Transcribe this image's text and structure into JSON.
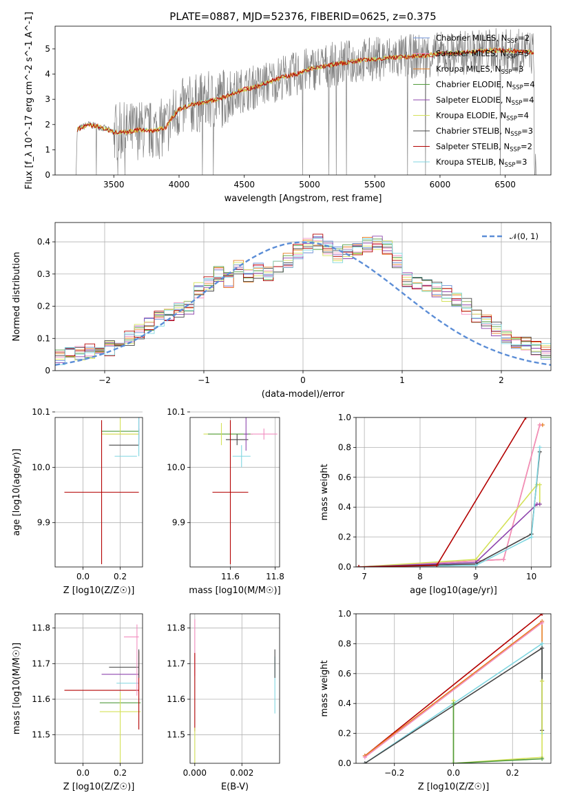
{
  "figure_title": "PLATE=0887, MJD=52376, FIBERID=0625, z=0.375",
  "colors": {
    "chabrier_miles": "#6b8fd6",
    "salpeter_miles": "#f28cbf",
    "kroupa_miles": "#e67e22",
    "chabrier_elodie": "#4f9a3b",
    "salpeter_elodie": "#8e44ad",
    "kroupa_elodie": "#d4e157",
    "chabrier_stelib": "#444444",
    "salpeter_stelib": "#b30000",
    "kroupa_stelib": "#7fd6e0",
    "data": "#808080",
    "normal": "#5b8dd6"
  },
  "chart_data": [
    {
      "id": "spectrum",
      "type": "line",
      "xlabel": "wavelength [Angstrom, rest frame]",
      "ylabel": "Flux [f_λ 10^-17 erg cm^-2 s^-1 A^-1]",
      "xlim": [
        3050,
        6850
      ],
      "ylim": [
        0,
        5.9
      ],
      "xticks": [
        3500,
        4000,
        4500,
        5000,
        5500,
        6000,
        6500
      ],
      "yticks": [
        0,
        1,
        2,
        3,
        4,
        5
      ],
      "grid": false,
      "legend_position": "upper right",
      "legend": [
        {
          "label": "Chabrier MILES, N",
          "sub": "SSP",
          "tail": "=2",
          "color_key": "chabrier_miles"
        },
        {
          "label": "Salpeter MILES, N",
          "sub": "SSP",
          "tail": "=3",
          "color_key": "salpeter_miles"
        },
        {
          "label": "Kroupa MILES, N",
          "sub": "SSP",
          "tail": "=3",
          "color_key": "kroupa_miles"
        },
        {
          "label": "Chabrier ELODIE, N",
          "sub": "SSP",
          "tail": "=4",
          "color_key": "chabrier_elodie"
        },
        {
          "label": "Salpeter ELODIE, N",
          "sub": "SSP",
          "tail": "=4",
          "color_key": "salpeter_elodie"
        },
        {
          "label": "Kroupa ELODIE, N",
          "sub": "SSP",
          "tail": "=4",
          "color_key": "kroupa_elodie"
        },
        {
          "label": "Chabrier STELIB, N",
          "sub": "SSP",
          "tail": "=3",
          "color_key": "chabrier_stelib"
        },
        {
          "label": "Salpeter STELIB, N",
          "sub": "SSP",
          "tail": "=2",
          "color_key": "salpeter_stelib"
        },
        {
          "label": "Kroupa STELIB, N",
          "sub": "SSP",
          "tail": "=3",
          "color_key": "kroupa_stelib"
        }
      ],
      "model_trend": [
        [
          3210,
          0
        ],
        [
          3220,
          1.8
        ],
        [
          3300,
          2.0
        ],
        [
          3400,
          1.9
        ],
        [
          3500,
          1.7
        ],
        [
          3600,
          1.7
        ],
        [
          3700,
          1.8
        ],
        [
          3800,
          1.75
        ],
        [
          3900,
          1.9
        ],
        [
          3950,
          2.3
        ],
        [
          4000,
          2.6
        ],
        [
          4100,
          2.8
        ],
        [
          4200,
          2.9
        ],
        [
          4300,
          3.0
        ],
        [
          4400,
          3.2
        ],
        [
          4500,
          3.4
        ],
        [
          4600,
          3.5
        ],
        [
          4700,
          3.7
        ],
        [
          4800,
          3.9
        ],
        [
          4900,
          4.0
        ],
        [
          5000,
          4.2
        ],
        [
          5200,
          4.4
        ],
        [
          5400,
          4.55
        ],
        [
          5600,
          4.65
        ],
        [
          5800,
          4.7
        ],
        [
          6000,
          4.8
        ],
        [
          6200,
          4.85
        ],
        [
          6400,
          4.95
        ],
        [
          6600,
          4.9
        ],
        [
          6720,
          4.85
        ]
      ],
      "data_xrange": [
        3210,
        6740
      ]
    },
    {
      "id": "residuals",
      "type": "bar",
      "xlabel": "(data-model)/error",
      "ylabel": "Normed distribution",
      "xlim": [
        -2.5,
        2.5
      ],
      "ylim": [
        0,
        0.46
      ],
      "xticks": [
        -2,
        -1,
        0,
        1,
        2
      ],
      "xtick_labels": [
        "−2",
        "−1",
        "0",
        "1",
        "2"
      ],
      "yticks": [
        0,
        0.1,
        0.2,
        0.3,
        0.4
      ],
      "grid": true,
      "legend": "𝒩(0, 1)",
      "bin_width": 0.1,
      "hist_base": [
        0.02,
        0.025,
        0.03,
        0.04,
        0.05,
        0.055,
        0.06,
        0.05,
        0.07,
        0.09,
        0.1,
        0.12,
        0.14,
        0.16,
        0.18,
        0.19,
        0.2,
        0.25,
        0.27,
        0.3,
        0.28,
        0.32,
        0.3,
        0.31,
        0.3,
        0.32,
        0.34,
        0.37,
        0.39,
        0.4,
        0.38,
        0.36,
        0.37,
        0.38,
        0.39,
        0.4,
        0.38,
        0.34,
        0.28,
        0.27,
        0.26,
        0.25,
        0.24,
        0.22,
        0.2,
        0.17,
        0.15,
        0.13,
        0.1,
        0.09,
        0.08,
        0.07,
        0.06,
        0.05,
        0.04,
        0.03
      ]
    },
    {
      "id": "age_vs_Z",
      "type": "scatter",
      "xlabel": "Z [log10(Z/Z☉)]",
      "ylabel": "age  [log10(age/yr)]",
      "xlim": [
        -0.15,
        0.32
      ],
      "ylim": [
        9.82,
        10.09
      ],
      "xticks": [
        0.0,
        0.2
      ],
      "xtick_labels": [
        "0.0",
        "0.2"
      ],
      "yticks": [
        9.9,
        10.0,
        10.1
      ],
      "ytick_labels": [
        "9.9",
        "10.0",
        "10.1"
      ],
      "grid": true,
      "points": [
        {
          "x": 0.21,
          "y": 10.06,
          "xerr": 0.09,
          "yerr": 0.0,
          "c": "kroupa_miles"
        },
        {
          "x": 0.2,
          "y": 10.065,
          "xerr": 0.1,
          "yerr": 0.0,
          "c": "chabrier_elodie"
        },
        {
          "x": 0.2,
          "y": 10.06,
          "xerr": 0.1,
          "yerr": 0.0,
          "c": "kroupa_elodie"
        },
        {
          "x": 0.22,
          "y": 10.04,
          "xerr": 0.08,
          "yerr": 0.0,
          "c": "chabrier_stelib"
        },
        {
          "x": 0.23,
          "y": 10.02,
          "xerr": 0.06,
          "yerr": 0.0,
          "c": "kroupa_stelib"
        },
        {
          "x": 0.3,
          "y": 10.06,
          "xerr": 0.0,
          "yerr": 0.01,
          "c": "chabrier_miles"
        },
        {
          "x": 0.3,
          "y": 10.07,
          "xerr": 0.0,
          "yerr": 0.03,
          "c": "salpeter_elodie"
        },
        {
          "x": 0.1,
          "y": 9.955,
          "xerr": 0.2,
          "yerr": 0.13,
          "c": "salpeter_stelib"
        },
        {
          "x": 0.2,
          "y": 10.09,
          "xerr": 0.0,
          "yerr": 0.03,
          "c": "kroupa_elodie"
        },
        {
          "x": 0.3,
          "y": 10.06,
          "xerr": 0.0,
          "yerr": 0.04,
          "c": "kroupa_stelib"
        }
      ]
    },
    {
      "id": "age_vs_mass",
      "type": "scatter",
      "xlabel": "mass [log10(M/M☉)]",
      "ylabel": "",
      "xlim": [
        11.42,
        11.82
      ],
      "ylim": [
        9.82,
        10.09
      ],
      "xticks": [
        11.6,
        11.8
      ],
      "xtick_labels": [
        "11.6",
        "11.8"
      ],
      "yticks": [
        9.9,
        10.0,
        10.1
      ],
      "ytick_labels": [
        "9.9",
        "10.0",
        "10.1"
      ],
      "grid": true,
      "points": [
        {
          "x": 11.58,
          "y": 10.06,
          "xerr": 0.1,
          "yerr": 0.0,
          "c": "kroupa_elodie"
        },
        {
          "x": 11.6,
          "y": 10.06,
          "xerr": 0.1,
          "yerr": 0.0,
          "c": "chabrier_elodie"
        },
        {
          "x": 11.63,
          "y": 10.05,
          "xerr": 0.05,
          "yerr": 0.01,
          "c": "chabrier_stelib"
        },
        {
          "x": 11.65,
          "y": 10.02,
          "xerr": 0.04,
          "yerr": 0.02,
          "c": "kroupa_stelib"
        },
        {
          "x": 11.67,
          "y": 10.06,
          "xerr": 0.01,
          "yerr": 0.03,
          "c": "salpeter_elodie"
        },
        {
          "x": 11.75,
          "y": 10.06,
          "xerr": 0.06,
          "yerr": 0.01,
          "c": "salpeter_miles"
        },
        {
          "x": 11.6,
          "y": 9.955,
          "xerr": 0.08,
          "yerr": 0.13,
          "c": "salpeter_stelib"
        },
        {
          "x": 11.56,
          "y": 10.06,
          "xerr": 0.0,
          "yerr": 0.02,
          "c": "kroupa_elodie"
        }
      ]
    },
    {
      "id": "mass_weight_vs_age",
      "type": "line",
      "xlabel": "age  [log10(age/yr)]",
      "ylabel": "mass weight",
      "xlim": [
        6.85,
        10.35
      ],
      "ylim": [
        0,
        1.0
      ],
      "xticks": [
        7,
        8,
        9,
        10
      ],
      "xtick_labels": [
        "7",
        "8",
        "9",
        "10"
      ],
      "yticks": [
        0,
        0.2,
        0.4,
        0.6,
        0.8,
        1.0
      ],
      "ytick_labels": [
        "0.0",
        "0.2",
        "0.4",
        "0.6",
        "0.8",
        "1.0"
      ],
      "grid": true,
      "series": [
        {
          "c": "kroupa_miles",
          "pts": [
            [
              6.9,
              0
            ],
            [
              9.5,
              0.05
            ],
            [
              10.15,
              0.95
            ],
            [
              10.2,
              0.95
            ]
          ]
        },
        {
          "c": "salpeter_miles",
          "pts": [
            [
              6.9,
              0
            ],
            [
              9.5,
              0.05
            ],
            [
              10.15,
              0.95
            ]
          ]
        },
        {
          "c": "kroupa_elodie",
          "pts": [
            [
              6.9,
              0
            ],
            [
              9.0,
              0.05
            ],
            [
              10.1,
              0.55
            ],
            [
              10.15,
              0.55
            ],
            [
              10.15,
              0.42
            ]
          ]
        },
        {
          "c": "salpeter_elodie",
          "pts": [
            [
              6.9,
              0
            ],
            [
              9.0,
              0.03
            ],
            [
              10.1,
              0.42
            ],
            [
              10.15,
              0.42
            ]
          ]
        },
        {
          "c": "chabrier_stelib",
          "pts": [
            [
              6.9,
              0
            ],
            [
              9.0,
              0.02
            ],
            [
              10.0,
              0.22
            ],
            [
              10.15,
              0.77
            ]
          ]
        },
        {
          "c": "kroupa_stelib",
          "pts": [
            [
              6.9,
              0
            ],
            [
              9.0,
              0.01
            ],
            [
              10.0,
              0.2
            ],
            [
              10.15,
              0.8
            ]
          ]
        },
        {
          "c": "salpeter_stelib",
          "pts": [
            [
              6.9,
              0
            ],
            [
              8.3,
              0.01
            ],
            [
              9.9,
              1.0
            ]
          ]
        }
      ]
    },
    {
      "id": "mass_vs_Z",
      "type": "scatter",
      "xlabel": "Z [log10(Z/Z☉)]",
      "ylabel": "mass [log10(M/M☉)]",
      "xlim": [
        -0.15,
        0.32
      ],
      "ylim": [
        11.42,
        11.84
      ],
      "xticks": [
        0.0,
        0.2
      ],
      "xtick_labels": [
        "0.0",
        "0.2"
      ],
      "yticks": [
        11.5,
        11.6,
        11.7,
        11.8
      ],
      "ytick_labels": [
        "11.5",
        "11.6",
        "11.7",
        "11.8"
      ],
      "grid": true,
      "points": [
        {
          "x": 0.2,
          "y": 11.565,
          "xerr": 0.11,
          "yerr": 0.0,
          "c": "kroupa_elodie"
        },
        {
          "x": 0.2,
          "y": 11.59,
          "xerr": 0.11,
          "yerr": 0.0,
          "c": "chabrier_elodie"
        },
        {
          "x": 0.2,
          "y": 11.67,
          "xerr": 0.1,
          "yerr": 0.0,
          "c": "salpeter_elodie"
        },
        {
          "x": 0.22,
          "y": 11.69,
          "xerr": 0.08,
          "yerr": 0.0,
          "c": "chabrier_stelib"
        },
        {
          "x": 0.24,
          "y": 11.645,
          "xerr": 0.06,
          "yerr": 0.0,
          "c": "kroupa_stelib"
        },
        {
          "x": 0.26,
          "y": 11.775,
          "xerr": 0.04,
          "yerr": 0.0,
          "c": "salpeter_miles"
        },
        {
          "x": 0.1,
          "y": 11.625,
          "xerr": 0.2,
          "yerr": 0.0,
          "c": "salpeter_stelib"
        },
        {
          "x": 0.3,
          "y": 11.625,
          "xerr": 0.0,
          "yerr": 0.11,
          "c": "salpeter_stelib"
        },
        {
          "x": 0.2,
          "y": 11.52,
          "xerr": 0.0,
          "yerr": 0.1,
          "c": "kroupa_elodie"
        },
        {
          "x": 0.29,
          "y": 11.71,
          "xerr": 0.0,
          "yerr": 0.1,
          "c": "salpeter_miles"
        },
        {
          "x": 0.3,
          "y": 11.7,
          "xerr": 0.0,
          "yerr": 0.04,
          "c": "chabrier_stelib"
        }
      ]
    },
    {
      "id": "mass_vs_ebv",
      "type": "scatter",
      "xlabel": "E(B-V)",
      "ylabel": "",
      "xlim": [
        -0.0002,
        0.0036
      ],
      "ylim": [
        11.42,
        11.84
      ],
      "xticks": [
        0.0,
        0.002
      ],
      "xtick_labels": [
        "0.000",
        "0.002"
      ],
      "yticks": [
        11.5,
        11.6,
        11.7,
        11.8
      ],
      "ytick_labels": [
        "11.5",
        "11.6",
        "11.7",
        "11.8"
      ],
      "grid": true,
      "points": [
        {
          "x": 0.0,
          "y": 11.745,
          "xerr": 0.0,
          "yerr": 0.08,
          "c": "salpeter_miles"
        },
        {
          "x": 0.0,
          "y": 11.62,
          "xerr": 0.0,
          "yerr": 0.11,
          "c": "salpeter_stelib"
        },
        {
          "x": 0.0,
          "y": 11.47,
          "xerr": 0.0,
          "yerr": 0.05,
          "c": "kroupa_elodie"
        },
        {
          "x": 0.0034,
          "y": 11.64,
          "xerr": 0.0,
          "yerr": 0.08,
          "c": "kroupa_stelib"
        },
        {
          "x": 0.0034,
          "y": 11.7,
          "xerr": 0.0,
          "yerr": 0.04,
          "c": "chabrier_stelib"
        }
      ]
    },
    {
      "id": "mass_weight_vs_Z",
      "type": "line",
      "xlabel": "Z [log10(Z/Z☉)]",
      "ylabel": "mass weight",
      "xlim": [
        -0.33,
        0.33
      ],
      "ylim": [
        0,
        1.0
      ],
      "xticks": [
        -0.2,
        0.0,
        0.2
      ],
      "xtick_labels": [
        "−0.2",
        "0.0",
        "0.2"
      ],
      "yticks": [
        0,
        0.2,
        0.4,
        0.6,
        0.8,
        1.0
      ],
      "ytick_labels": [
        "0.0",
        "0.2",
        "0.4",
        "0.6",
        "0.8",
        "1.0"
      ],
      "grid": true,
      "series": [
        {
          "c": "salpeter_stelib",
          "pts": [
            [
              -0.3,
              0.05
            ],
            [
              0.3,
              1.0
            ]
          ]
        },
        {
          "c": "kroupa_miles",
          "pts": [
            [
              -0.3,
              0.05
            ],
            [
              0.3,
              0.95
            ],
            [
              0.3,
              0.55
            ]
          ]
        },
        {
          "c": "salpeter_miles",
          "pts": [
            [
              -0.3,
              0.04
            ],
            [
              0.3,
              0.94
            ]
          ]
        },
        {
          "c": "kroupa_stelib",
          "pts": [
            [
              -0.3,
              0.0
            ],
            [
              0.3,
              0.8
            ],
            [
              0.3,
              0.2
            ]
          ]
        },
        {
          "c": "chabrier_stelib",
          "pts": [
            [
              -0.3,
              0.0
            ],
            [
              0.3,
              0.77
            ],
            [
              0.3,
              0.22
            ]
          ]
        },
        {
          "c": "kroupa_elodie",
          "pts": [
            [
              0.0,
              0.42
            ],
            [
              0.0,
              0.0
            ],
            [
              0.3,
              0.04
            ],
            [
              0.3,
              0.55
            ]
          ]
        },
        {
          "c": "chabrier_elodie",
          "pts": [
            [
              0.0,
              0.4
            ],
            [
              0.0,
              0.0
            ],
            [
              0.3,
              0.03
            ]
          ]
        }
      ]
    }
  ]
}
